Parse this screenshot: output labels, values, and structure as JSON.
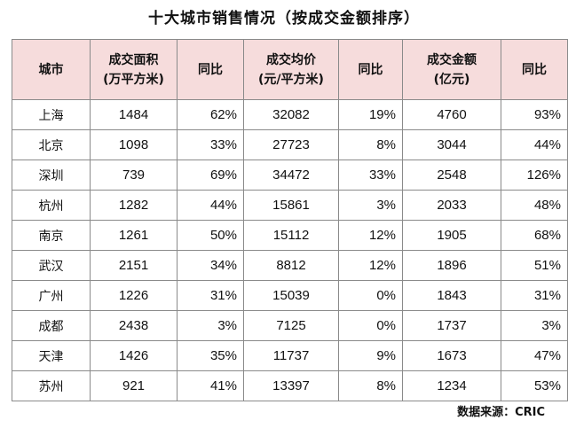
{
  "title": "十大城市销售情况（按成交金额排序）",
  "columns": {
    "city": "城市",
    "area_line1": "成交面积",
    "area_line2": "(万平方米)",
    "area_yoy": "同比",
    "price_line1": "成交均价",
    "price_line2": "(元/平方米)",
    "price_yoy": "同比",
    "amount_line1": "成交金额",
    "amount_line2": "(亿元)",
    "amount_yoy": "同比"
  },
  "rows": [
    {
      "city": "上海",
      "area": "1484",
      "area_yoy": "62%",
      "price": "32082",
      "price_yoy": "19%",
      "amount": "4760",
      "amount_yoy": "93%"
    },
    {
      "city": "北京",
      "area": "1098",
      "area_yoy": "33%",
      "price": "27723",
      "price_yoy": "8%",
      "amount": "3044",
      "amount_yoy": "44%"
    },
    {
      "city": "深圳",
      "area": "739",
      "area_yoy": "69%",
      "price": "34472",
      "price_yoy": "33%",
      "amount": "2548",
      "amount_yoy": "126%"
    },
    {
      "city": "杭州",
      "area": "1282",
      "area_yoy": "44%",
      "price": "15861",
      "price_yoy": "3%",
      "amount": "2033",
      "amount_yoy": "48%"
    },
    {
      "city": "南京",
      "area": "1261",
      "area_yoy": "50%",
      "price": "15112",
      "price_yoy": "12%",
      "amount": "1905",
      "amount_yoy": "68%"
    },
    {
      "city": "武汉",
      "area": "2151",
      "area_yoy": "34%",
      "price": "8812",
      "price_yoy": "12%",
      "amount": "1896",
      "amount_yoy": "51%"
    },
    {
      "city": "广州",
      "area": "1226",
      "area_yoy": "31%",
      "price": "15039",
      "price_yoy": "0%",
      "amount": "1843",
      "amount_yoy": "31%"
    },
    {
      "city": "成都",
      "area": "2438",
      "area_yoy": "3%",
      "price": "7125",
      "price_yoy": "0%",
      "amount": "1737",
      "amount_yoy": "3%"
    },
    {
      "city": "天津",
      "area": "1426",
      "area_yoy": "35%",
      "price": "11737",
      "price_yoy": "9%",
      "amount": "1673",
      "amount_yoy": "47%"
    },
    {
      "city": "苏州",
      "area": "921",
      "area_yoy": "41%",
      "price": "13397",
      "price_yoy": "8%",
      "amount": "1234",
      "amount_yoy": "53%"
    }
  ],
  "source": "数据来源：CRIC",
  "colors": {
    "header_bg": "#f6dcdc",
    "border": "#8a8a8a",
    "text": "#111111"
  }
}
